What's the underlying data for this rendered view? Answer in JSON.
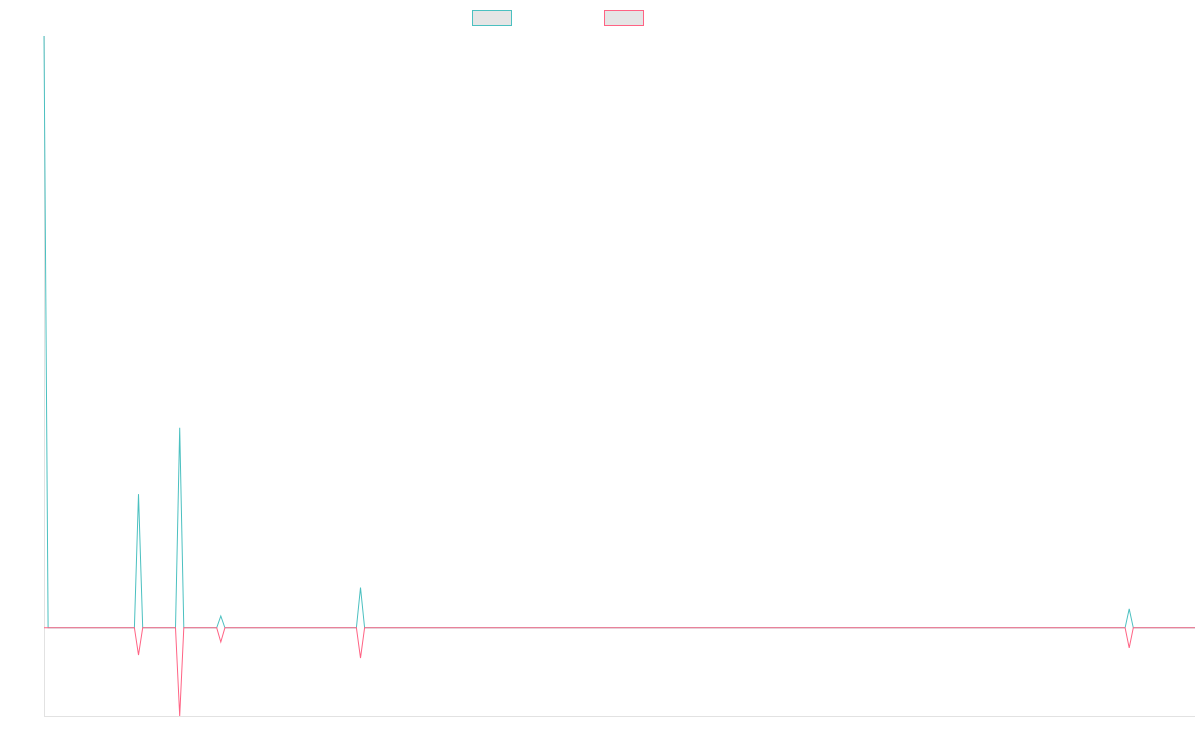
{
  "chart_data": {
    "type": "line",
    "title": "",
    "xlabel": "",
    "ylabel": "",
    "xlim": [
      0,
      280
    ],
    "ylim": [
      -0.149,
      1.0
    ],
    "grid": false,
    "legend_placement": "top",
    "series": [
      {
        "color": "#4bc0c0",
        "x": [
          0,
          1,
          22,
          23,
          24,
          32,
          33,
          34,
          42,
          43,
          44,
          76,
          77,
          78,
          263,
          264,
          265,
          280
        ],
        "y": [
          1.0,
          0,
          0,
          0.226,
          0,
          0,
          0.338,
          0,
          0,
          0.02,
          0,
          0,
          0.068,
          0,
          0,
          0.032,
          0,
          0
        ]
      },
      {
        "color": "#ff6384",
        "x": [
          0,
          1,
          22,
          23,
          24,
          32,
          33,
          34,
          42,
          43,
          44,
          76,
          77,
          78,
          263,
          264,
          265,
          280
        ],
        "y": [
          0,
          0,
          0,
          -0.046,
          0,
          0,
          -0.149,
          0,
          0,
          -0.024,
          0,
          0,
          -0.051,
          0,
          0,
          -0.034,
          0,
          0
        ]
      }
    ]
  }
}
